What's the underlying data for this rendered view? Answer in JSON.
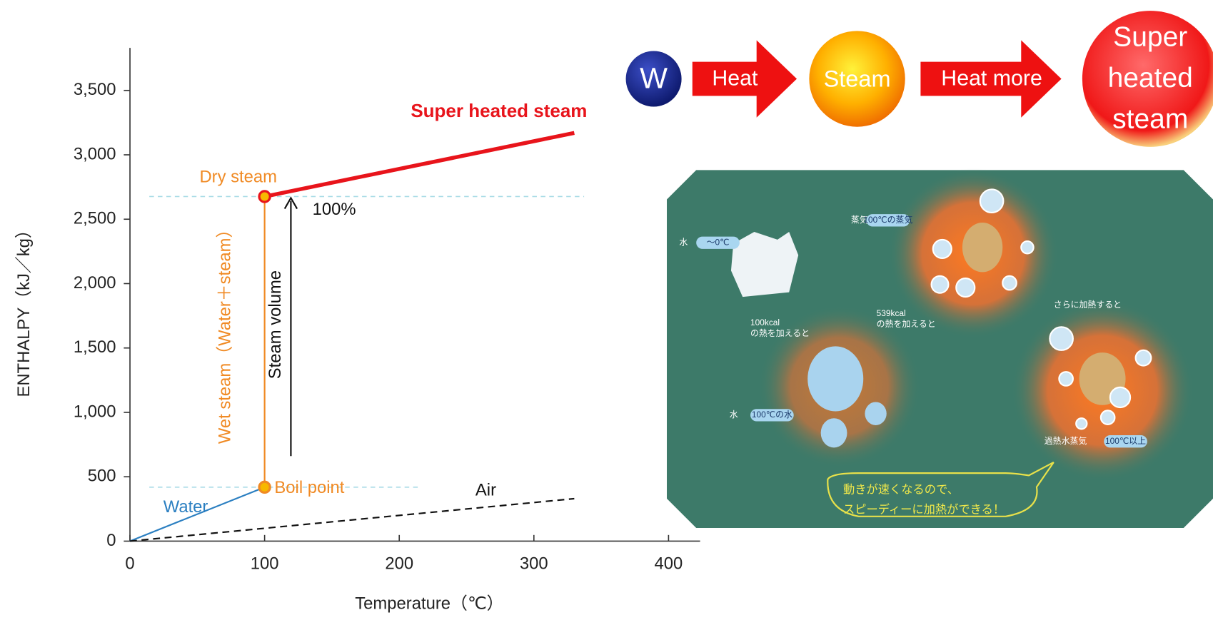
{
  "chart_data": {
    "type": "line",
    "xlabel": "Temperature（℃）",
    "ylabel": "ENTHALPY（kJ／kg）",
    "xlim": [
      0,
      420
    ],
    "ylim": [
      0,
      3800
    ],
    "xticks": [
      0,
      100,
      200,
      300,
      400
    ],
    "yticks": [
      0,
      500,
      {
        "value": 1000,
        "label": "1,000"
      },
      {
        "value": 1500,
        "label": "1,500"
      },
      {
        "value": 2000,
        "label": "2,000"
      },
      {
        "value": 2500,
        "label": "2,500"
      },
      {
        "value": 3000,
        "label": "3,000"
      },
      {
        "value": 3500,
        "label": "3,500"
      }
    ],
    "series": [
      {
        "name": "Water",
        "color": "#2b7fc1",
        "x": [
          0,
          100
        ],
        "values": [
          0,
          419
        ]
      },
      {
        "name": "Wet steam（Water＋steam）",
        "color": "#f08a24",
        "x": [
          100,
          100
        ],
        "values": [
          419,
          2676
        ]
      },
      {
        "name": "Super heated steam",
        "color": "#e8141b",
        "x": [
          100,
          330
        ],
        "values": [
          2676,
          3170
        ]
      },
      {
        "name": "Air",
        "color": "#111111",
        "x": [
          0,
          330
        ],
        "values": [
          0,
          330
        ]
      }
    ],
    "annotations": [
      "Dry steam",
      "Boil point",
      "Steam volume",
      "100%"
    ]
  },
  "flow": {
    "start": "W",
    "step1": "Heat",
    "state1": "Steam",
    "step2": "Heat more",
    "state2": [
      "Super",
      "heated",
      "steam"
    ]
  },
  "illustration": {
    "texts": [
      "水",
      "〜0℃",
      "蒸気",
      "100℃の蒸気",
      "100kcal",
      "の熱を加えると",
      "539kcal",
      "の熱を加えると",
      "さらに加熱すると",
      "水",
      "100℃の水",
      "過熱水蒸気",
      "100℃以上",
      "動きが速くなるので、",
      "スピーディーに加熱ができる！"
    ]
  }
}
